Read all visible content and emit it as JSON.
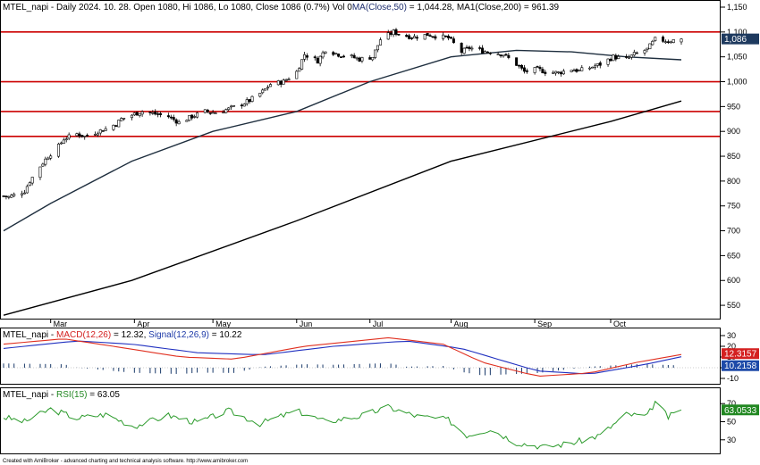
{
  "header": {
    "ticker": "MTEL_napi",
    "info": " - Daily 2024. 10. 28. Open 1080, Hi 1086, Lo 1080, Close 1086 (0.7%) Vol 0",
    "ma50_label": "MA(Close,50)",
    "ma50_value": " = 1,044.28, ",
    "ma200_label": "MA1(Close,200)",
    "ma200_value": " = 961.39"
  },
  "macd_header": {
    "ticker": "MTEL_napi - ",
    "macd_label": "MACD(12,26)",
    "macd_value": " = 12.32, ",
    "signal_label": "Signal(12,26,9)",
    "signal_value": " = 10.22"
  },
  "rsi_header": {
    "ticker": "MTEL_napi - ",
    "rsi_label": "RSI(15)",
    "rsi_value": " = 63.05"
  },
  "footer": "Created with AmiBroker - advanced charting and technical analysis software. http://www.amibroker.com",
  "badges": {
    "price": "1,086",
    "macd": "12.3157",
    "signal": "10.2158",
    "rsi": "63.0533"
  },
  "colors": {
    "candle": "#000000",
    "ma50": "#1e2e3e",
    "ma200": "#000000",
    "hline": "#cc0000",
    "macd": "#e03020",
    "signal": "#2030c0",
    "histogram": "#1a3a6a",
    "rsi": "#2a9a2a",
    "badge_price": "#1e3a5f",
    "badge_macd": "#d42020",
    "badge_signal": "#1e4aa8",
    "badge_rsi": "#228822"
  },
  "chart_data": [
    {
      "type": "candlestick",
      "title": "MTEL_napi - Daily 2024. 10. 28.",
      "y_ticks": [
        550,
        600,
        650,
        700,
        750,
        800,
        850,
        900,
        950,
        1000,
        1050,
        1100,
        1150
      ],
      "y_tick_labels": [
        "550",
        "600",
        "650",
        "700",
        "750",
        "800",
        "850",
        "900",
        "950",
        "1,000",
        "1,050",
        "1,100",
        "1,150"
      ],
      "ylim": [
        525,
        1150
      ],
      "x_months": [
        {
          "label": "Mar",
          "date": "2024-03-01"
        },
        {
          "label": "Apr",
          "date": "2024-04-02"
        },
        {
          "label": "May",
          "date": "2024-05-02"
        },
        {
          "label": "Jun",
          "date": "2024-06-03"
        },
        {
          "label": "Jul",
          "date": "2024-07-01"
        },
        {
          "label": "Aug",
          "date": "2024-08-01"
        },
        {
          "label": "Sep",
          "date": "2024-09-02"
        },
        {
          "label": "Oct",
          "date": "2024-10-01"
        }
      ],
      "horizontal_lines": [
        1100,
        1000,
        940,
        890
      ],
      "close_path": [
        [
          "2024-02-12",
          770
        ],
        [
          "2024-02-14",
          768
        ],
        [
          "2024-02-16",
          772
        ],
        [
          "2024-02-20",
          780
        ],
        [
          "2024-02-22",
          800
        ],
        [
          "2024-02-26",
          830
        ],
        [
          "2024-02-29",
          850
        ],
        [
          "2024-03-04",
          870
        ],
        [
          "2024-03-06",
          885
        ],
        [
          "2024-03-11",
          895
        ],
        [
          "2024-03-14",
          890
        ],
        [
          "2024-03-19",
          900
        ],
        [
          "2024-03-22",
          905
        ],
        [
          "2024-03-26",
          915
        ],
        [
          "2024-03-28",
          925
        ],
        [
          "2024-04-02",
          935
        ],
        [
          "2024-04-05",
          940
        ],
        [
          "2024-04-10",
          935
        ],
        [
          "2024-04-15",
          930
        ],
        [
          "2024-04-19",
          918
        ],
        [
          "2024-04-24",
          930
        ],
        [
          "2024-04-29",
          940
        ],
        [
          "2024-05-03",
          938
        ],
        [
          "2024-05-08",
          945
        ],
        [
          "2024-05-13",
          955
        ],
        [
          "2024-05-16",
          962
        ],
        [
          "2024-05-21",
          980
        ],
        [
          "2024-05-24",
          995
        ],
        [
          "2024-05-29",
          1000
        ],
        [
          "2024-06-03",
          1020
        ],
        [
          "2024-06-06",
          1055
        ],
        [
          "2024-06-11",
          1042
        ],
        [
          "2024-06-14",
          1065
        ],
        [
          "2024-06-19",
          1055
        ],
        [
          "2024-06-24",
          1050
        ],
        [
          "2024-06-27",
          1045
        ],
        [
          "2024-07-02",
          1050
        ],
        [
          "2024-07-05",
          1085
        ],
        [
          "2024-07-10",
          1100
        ],
        [
          "2024-07-15",
          1092
        ],
        [
          "2024-07-18",
          1090
        ],
        [
          "2024-07-23",
          1095
        ],
        [
          "2024-07-26",
          1092
        ],
        [
          "2024-07-31",
          1088
        ],
        [
          "2024-08-05",
          1060
        ],
        [
          "2024-08-08",
          1068
        ],
        [
          "2024-08-13",
          1062
        ],
        [
          "2024-08-16",
          1060
        ],
        [
          "2024-08-21",
          1055
        ],
        [
          "2024-08-26",
          1035
        ],
        [
          "2024-08-29",
          1020
        ],
        [
          "2024-09-03",
          1025
        ],
        [
          "2024-09-06",
          1020
        ],
        [
          "2024-09-11",
          1018
        ],
        [
          "2024-09-16",
          1025
        ],
        [
          "2024-09-19",
          1022
        ],
        [
          "2024-09-24",
          1030
        ],
        [
          "2024-09-27",
          1035
        ],
        [
          "2024-10-02",
          1050
        ],
        [
          "2024-10-07",
          1045
        ],
        [
          "2024-10-10",
          1055
        ],
        [
          "2024-10-15",
          1065
        ],
        [
          "2024-10-18",
          1085
        ],
        [
          "2024-10-23",
          1082
        ],
        [
          "2024-10-28",
          1086
        ]
      ],
      "series": [
        {
          "name": "MA(Close,50)",
          "points": [
            [
              "2024-02-12",
              700
            ],
            [
              "2024-03-01",
              755
            ],
            [
              "2024-04-01",
              840
            ],
            [
              "2024-05-02",
              900
            ],
            [
              "2024-06-03",
              940
            ],
            [
              "2024-07-01",
              1000
            ],
            [
              "2024-08-01",
              1050
            ],
            [
              "2024-08-26",
              1063
            ],
            [
              "2024-09-16",
              1060
            ],
            [
              "2024-10-07",
              1050
            ],
            [
              "2024-10-28",
              1044
            ]
          ]
        },
        {
          "name": "MA1(Close,200)",
          "points": [
            [
              "2024-02-12",
              530
            ],
            [
              "2024-04-01",
              600
            ],
            [
              "2024-06-03",
              720
            ],
            [
              "2024-08-01",
              840
            ],
            [
              "2024-10-01",
              920
            ],
            [
              "2024-10-28",
              961
            ]
          ]
        }
      ]
    },
    {
      "type": "line",
      "title": "MACD(12,26)",
      "y_ticks": [
        -10,
        0,
        10,
        20,
        30
      ],
      "ylim": [
        -15,
        35
      ],
      "series": [
        {
          "name": "MACD(12,26)",
          "points": [
            [
              "2024-02-12",
              22
            ],
            [
              "2024-03-06",
              27
            ],
            [
              "2024-03-25",
              20
            ],
            [
              "2024-04-20",
              10
            ],
            [
              "2024-05-10",
              8
            ],
            [
              "2024-06-06",
              20
            ],
            [
              "2024-07-08",
              28
            ],
            [
              "2024-07-29",
              22
            ],
            [
              "2024-08-13",
              5
            ],
            [
              "2024-09-03",
              -8
            ],
            [
              "2024-09-23",
              -5
            ],
            [
              "2024-10-11",
              5
            ],
            [
              "2024-10-28",
              12.32
            ]
          ]
        },
        {
          "name": "Signal(12,26,9)",
          "points": [
            [
              "2024-02-12",
              18
            ],
            [
              "2024-03-11",
              25
            ],
            [
              "2024-04-01",
              22
            ],
            [
              "2024-04-26",
              14
            ],
            [
              "2024-05-21",
              12
            ],
            [
              "2024-06-17",
              20
            ],
            [
              "2024-07-15",
              25
            ],
            [
              "2024-08-05",
              18
            ],
            [
              "2024-09-03",
              -3
            ],
            [
              "2024-09-23",
              -6
            ],
            [
              "2024-10-14",
              3
            ],
            [
              "2024-10-28",
              10.22
            ]
          ]
        }
      ]
    },
    {
      "type": "line",
      "title": "RSI(15)",
      "y_ticks": [
        30,
        50,
        70
      ],
      "ylim": [
        15,
        85
      ],
      "series": [
        {
          "name": "RSI(15)",
          "points": [
            [
              "2024-02-12",
              55
            ],
            [
              "2024-02-20",
              50
            ],
            [
              "2024-03-01",
              64
            ],
            [
              "2024-03-11",
              54
            ],
            [
              "2024-03-22",
              58
            ],
            [
              "2024-04-02",
              45
            ],
            [
              "2024-04-15",
              57
            ],
            [
              "2024-04-26",
              49
            ],
            [
              "2024-05-08",
              62
            ],
            [
              "2024-05-20",
              48
            ],
            [
              "2024-06-03",
              62
            ],
            [
              "2024-06-14",
              50
            ],
            [
              "2024-06-27",
              56
            ],
            [
              "2024-07-08",
              66
            ],
            [
              "2024-07-19",
              56
            ],
            [
              "2024-07-31",
              52
            ],
            [
              "2024-08-07",
              35
            ],
            [
              "2024-08-16",
              42
            ],
            [
              "2024-08-26",
              27
            ],
            [
              "2024-09-06",
              22
            ],
            [
              "2024-09-17",
              27
            ],
            [
              "2024-09-27",
              35
            ],
            [
              "2024-10-07",
              58
            ],
            [
              "2024-10-15",
              56
            ],
            [
              "2024-10-18",
              72
            ],
            [
              "2024-10-23",
              55
            ],
            [
              "2024-10-28",
              63.05
            ]
          ]
        }
      ]
    }
  ]
}
